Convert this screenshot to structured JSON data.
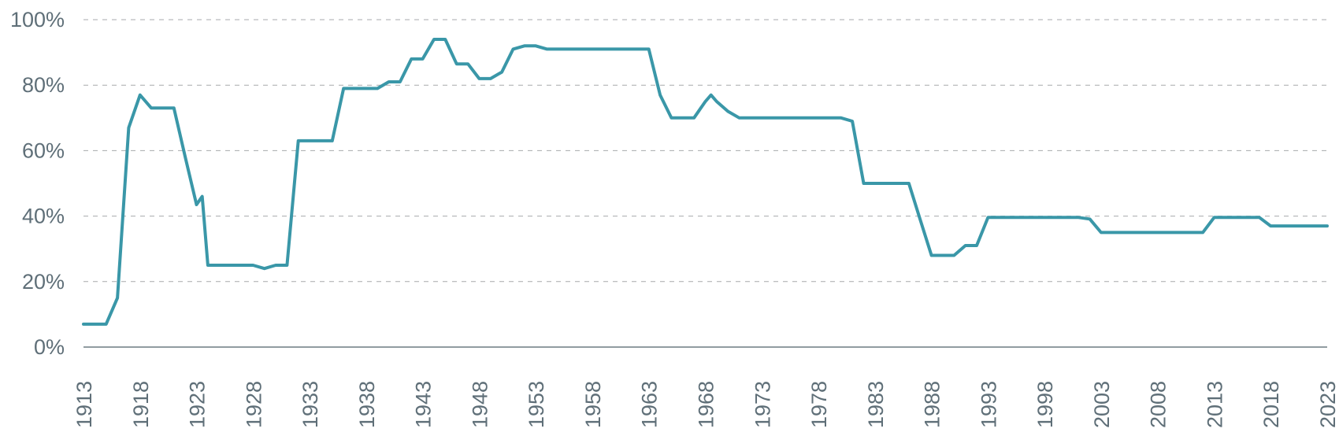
{
  "chart_data": {
    "type": "line",
    "title": "",
    "xlabel": "",
    "ylabel": "",
    "xlim": [
      1913,
      2023
    ],
    "ylim": [
      0,
      100
    ],
    "y_ticks": [
      0,
      20,
      40,
      60,
      80,
      100
    ],
    "y_tick_labels": [
      "0%",
      "20%",
      "40%",
      "60%",
      "80%",
      "100%"
    ],
    "x_ticks": [
      1913,
      1918,
      1923,
      1928,
      1933,
      1938,
      1943,
      1948,
      1953,
      1958,
      1963,
      1968,
      1973,
      1978,
      1983,
      1988,
      1993,
      1998,
      2003,
      2008,
      2013,
      2018,
      2023
    ],
    "x_tick_labels": [
      "1913",
      "1918",
      "1923",
      "1928",
      "1933",
      "1938",
      "1943",
      "1948",
      "1953",
      "1958",
      "1963",
      "1968",
      "1973",
      "1978",
      "1983",
      "1988",
      "1993",
      "1998",
      "2003",
      "2008",
      "2013",
      "2018",
      "2023"
    ],
    "grid": true,
    "legend": "none",
    "colors": {
      "line": "#3a97a8",
      "grid": "#a7a9ac",
      "axis": "#6d7b82",
      "text": "#5f6f78"
    },
    "series": [
      {
        "x": [
          1913,
          1915,
          1916,
          1917,
          1918,
          1919,
          1920,
          1921,
          1922,
          1923,
          1923.5,
          1924,
          1925,
          1926,
          1927,
          1928,
          1929,
          1930,
          1931,
          1932,
          1933,
          1934,
          1935,
          1936,
          1937,
          1938,
          1939,
          1940,
          1941,
          1942,
          1943,
          1944,
          1945,
          1946,
          1947,
          1948,
          1949,
          1950,
          1951,
          1952,
          1953,
          1954,
          1955,
          1956,
          1957,
          1958,
          1959,
          1960,
          1961,
          1962,
          1963,
          1964,
          1965,
          1966,
          1967,
          1968,
          1968.5,
          1969,
          1970,
          1971,
          1972,
          1973,
          1974,
          1975,
          1976,
          1977,
          1978,
          1979,
          1980,
          1981,
          1982,
          1983,
          1984,
          1985,
          1986,
          1987,
          1988,
          1989,
          1990,
          1991,
          1992,
          1993,
          1994,
          1995,
          1996,
          1997,
          1998,
          1999,
          2000,
          2001,
          2002,
          2003,
          2004,
          2005,
          2006,
          2007,
          2008,
          2009,
          2010,
          2011,
          2012,
          2013,
          2014,
          2015,
          2016,
          2017,
          2018,
          2019,
          2020,
          2021,
          2022,
          2023
        ],
        "y": [
          7,
          7,
          15,
          67,
          77,
          73,
          73,
          73,
          58,
          43.5,
          46,
          25,
          25,
          25,
          25,
          25,
          24,
          25,
          25,
          63,
          63,
          63,
          63,
          79,
          79,
          79,
          79,
          81,
          81,
          88,
          88,
          94,
          94,
          86.5,
          86.5,
          82,
          82,
          84,
          91,
          92,
          92,
          91,
          91,
          91,
          91,
          91,
          91,
          91,
          91,
          91,
          91,
          77,
          70,
          70,
          70,
          75,
          77,
          75,
          72,
          70,
          70,
          70,
          70,
          70,
          70,
          70,
          70,
          70,
          70,
          69,
          50,
          50,
          50,
          50,
          50,
          39,
          28,
          28,
          28,
          31,
          31,
          39.6,
          39.6,
          39.6,
          39.6,
          39.6,
          39.6,
          39.6,
          39.6,
          39.6,
          39.1,
          35,
          35,
          35,
          35,
          35,
          35,
          35,
          35,
          35,
          35,
          39.6,
          39.6,
          39.6,
          39.6,
          39.6,
          37,
          37,
          37,
          37,
          37,
          37
        ]
      }
    ]
  }
}
